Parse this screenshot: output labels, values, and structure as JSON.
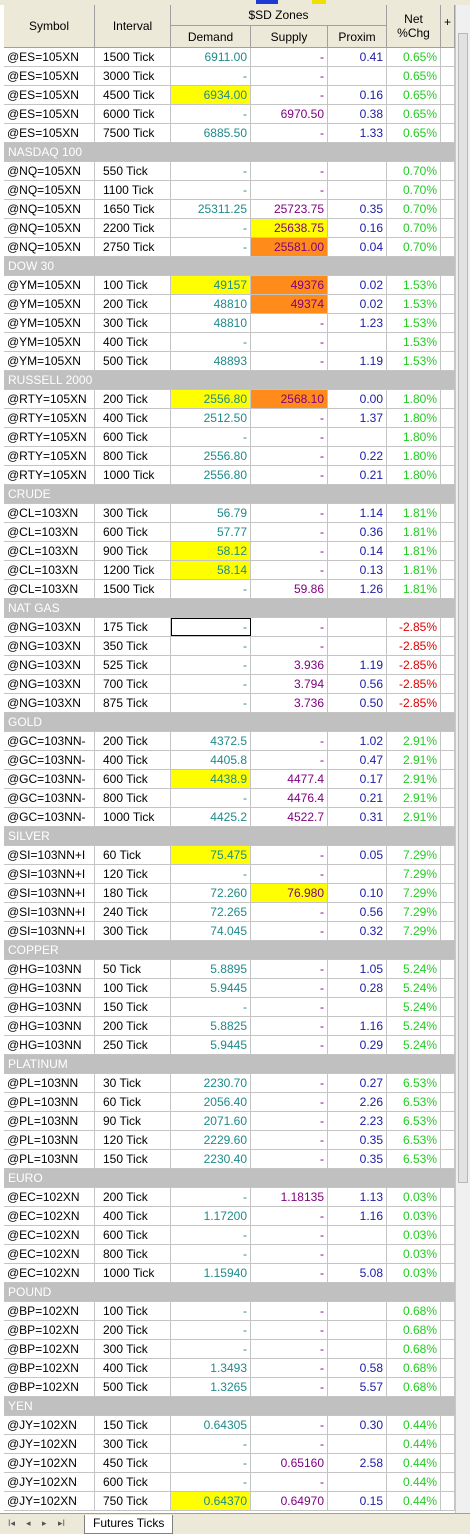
{
  "header": {
    "symbol": "Symbol",
    "interval": "Interval",
    "zones": "$SD Zones",
    "demand": "Demand",
    "supply": "Supply",
    "proxim": "Proxim",
    "net1": "Net",
    "net2": "%Chg",
    "plus": "+"
  },
  "tab": {
    "label": "Futures Ticks"
  },
  "nav": {
    "first": "I◂",
    "prev": "◂",
    "next": "▸",
    "last": "▸I"
  },
  "colors": {
    "demand": "#1e8a8a",
    "supply": "#800080",
    "proxim": "#1a1aa6",
    "net_positive": "#22cc22",
    "net_negative": "#e00000",
    "highlight_yellow": "#ffff00",
    "highlight_orange": "#ff8c1a",
    "group_bg": "#c0c0c0"
  },
  "rows": [
    {
      "type": "data",
      "symbol": "@ES=105XN",
      "interval": "1500 Tick",
      "demand": "6911.00",
      "supply": "-",
      "proxim": "0.41",
      "net": "0.65%"
    },
    {
      "type": "data",
      "symbol": "@ES=105XN",
      "interval": "3000 Tick",
      "demand": "-",
      "supply": "-",
      "proxim": "",
      "net": "0.65%"
    },
    {
      "type": "data",
      "symbol": "@ES=105XN",
      "interval": "4500 Tick",
      "demand": "6934.00",
      "supply": "-",
      "proxim": "0.16",
      "net": "0.65%",
      "demand_hl": "y"
    },
    {
      "type": "data",
      "symbol": "@ES=105XN",
      "interval": "6000 Tick",
      "demand": "-",
      "supply": "6970.50",
      "proxim": "0.38",
      "net": "0.65%"
    },
    {
      "type": "data",
      "symbol": "@ES=105XN",
      "interval": "7500 Tick",
      "demand": "6885.50",
      "supply": "-",
      "proxim": "1.33",
      "net": "0.65%"
    },
    {
      "type": "group",
      "label": "NASDAQ 100"
    },
    {
      "type": "data",
      "symbol": "@NQ=105XN",
      "interval": "550 Tick",
      "demand": "-",
      "supply": "-",
      "proxim": "",
      "net": "0.70%"
    },
    {
      "type": "data",
      "symbol": "@NQ=105XN",
      "interval": "1100 Tick",
      "demand": "-",
      "supply": "-",
      "proxim": "",
      "net": "0.70%"
    },
    {
      "type": "data",
      "symbol": "@NQ=105XN",
      "interval": "1650 Tick",
      "demand": "25311.25",
      "supply": "25723.75",
      "proxim": "0.35",
      "net": "0.70%"
    },
    {
      "type": "data",
      "symbol": "@NQ=105XN",
      "interval": "2200 Tick",
      "demand": "-",
      "supply": "25638.75",
      "proxim": "0.16",
      "net": "0.70%",
      "supply_hl": "y"
    },
    {
      "type": "data",
      "symbol": "@NQ=105XN",
      "interval": "2750 Tick",
      "demand": "-",
      "supply": "25581.00",
      "proxim": "0.04",
      "net": "0.70%",
      "supply_hl": "o"
    },
    {
      "type": "group",
      "label": "DOW 30"
    },
    {
      "type": "data",
      "symbol": "@YM=105XN",
      "interval": "100 Tick",
      "demand": "49157",
      "supply": "49376",
      "proxim": "0.02",
      "net": "1.53%",
      "demand_hl": "y",
      "supply_hl": "o"
    },
    {
      "type": "data",
      "symbol": "@YM=105XN",
      "interval": "200 Tick",
      "demand": "48810",
      "supply": "49374",
      "proxim": "0.02",
      "net": "1.53%",
      "supply_hl": "o"
    },
    {
      "type": "data",
      "symbol": "@YM=105XN",
      "interval": "300 Tick",
      "demand": "48810",
      "supply": "-",
      "proxim": "1.23",
      "net": "1.53%"
    },
    {
      "type": "data",
      "symbol": "@YM=105XN",
      "interval": "400 Tick",
      "demand": "-",
      "supply": "-",
      "proxim": "",
      "net": "1.53%"
    },
    {
      "type": "data",
      "symbol": "@YM=105XN",
      "interval": "500 Tick",
      "demand": "48893",
      "supply": "-",
      "proxim": "1.19",
      "net": "1.53%"
    },
    {
      "type": "group",
      "label": "RUSSELL 2000"
    },
    {
      "type": "data",
      "symbol": "@RTY=105XN",
      "interval": "200 Tick",
      "demand": "2556.80",
      "supply": "2568.10",
      "proxim": "0.00",
      "net": "1.80%",
      "demand_hl": "y",
      "supply_hl": "o"
    },
    {
      "type": "data",
      "symbol": "@RTY=105XN",
      "interval": "400 Tick",
      "demand": "2512.50",
      "supply": "-",
      "proxim": "1.37",
      "net": "1.80%"
    },
    {
      "type": "data",
      "symbol": "@RTY=105XN",
      "interval": "600 Tick",
      "demand": "-",
      "supply": "-",
      "proxim": "",
      "net": "1.80%"
    },
    {
      "type": "data",
      "symbol": "@RTY=105XN",
      "interval": "800 Tick",
      "demand": "2556.80",
      "supply": "-",
      "proxim": "0.22",
      "net": "1.80%"
    },
    {
      "type": "data",
      "symbol": "@RTY=105XN",
      "interval": "1000 Tick",
      "demand": "2556.80",
      "supply": "-",
      "proxim": "0.21",
      "net": "1.80%"
    },
    {
      "type": "group",
      "label": "CRUDE"
    },
    {
      "type": "data",
      "symbol": "@CL=103XN",
      "interval": "300 Tick",
      "demand": "56.79",
      "supply": "-",
      "proxim": "1.14",
      "net": "1.81%"
    },
    {
      "type": "data",
      "symbol": "@CL=103XN",
      "interval": "600 Tick",
      "demand": "57.77",
      "supply": "-",
      "proxim": "0.36",
      "net": "1.81%"
    },
    {
      "type": "data",
      "symbol": "@CL=103XN",
      "interval": "900 Tick",
      "demand": "58.12",
      "supply": "-",
      "proxim": "0.14",
      "net": "1.81%",
      "demand_hl": "y"
    },
    {
      "type": "data",
      "symbol": "@CL=103XN",
      "interval": "1200 Tick",
      "demand": "58.14",
      "supply": "-",
      "proxim": "0.13",
      "net": "1.81%",
      "demand_hl": "y"
    },
    {
      "type": "data",
      "symbol": "@CL=103XN",
      "interval": "1500 Tick",
      "demand": "-",
      "supply": "59.86",
      "proxim": "1.26",
      "net": "1.81%"
    },
    {
      "type": "group",
      "label": "NAT GAS"
    },
    {
      "type": "data",
      "symbol": "@NG=103XN",
      "interval": "175 Tick",
      "demand": "-",
      "supply": "-",
      "proxim": "",
      "net": "-2.85%",
      "demand_sel": true
    },
    {
      "type": "data",
      "symbol": "@NG=103XN",
      "interval": "350 Tick",
      "demand": "-",
      "supply": "-",
      "proxim": "",
      "net": "-2.85%"
    },
    {
      "type": "data",
      "symbol": "@NG=103XN",
      "interval": "525 Tick",
      "demand": "-",
      "supply": "3.936",
      "proxim": "1.19",
      "net": "-2.85%"
    },
    {
      "type": "data",
      "symbol": "@NG=103XN",
      "interval": "700 Tick",
      "demand": "-",
      "supply": "3.794",
      "proxim": "0.56",
      "net": "-2.85%"
    },
    {
      "type": "data",
      "symbol": "@NG=103XN",
      "interval": "875 Tick",
      "demand": "-",
      "supply": "3.736",
      "proxim": "0.50",
      "net": "-2.85%"
    },
    {
      "type": "group",
      "label": "GOLD"
    },
    {
      "type": "data",
      "symbol": "@GC=103NN-",
      "interval": "200 Tick",
      "demand": "4372.5",
      "supply": "-",
      "proxim": "1.02",
      "net": "2.91%"
    },
    {
      "type": "data",
      "symbol": "@GC=103NN-",
      "interval": "400 Tick",
      "demand": "4405.8",
      "supply": "-",
      "proxim": "0.47",
      "net": "2.91%"
    },
    {
      "type": "data",
      "symbol": "@GC=103NN-",
      "interval": "600 Tick",
      "demand": "4438.9",
      "supply": "4477.4",
      "proxim": "0.17",
      "net": "2.91%",
      "demand_hl": "y"
    },
    {
      "type": "data",
      "symbol": "@GC=103NN-",
      "interval": "800 Tick",
      "demand": "-",
      "supply": "4476.4",
      "proxim": "0.21",
      "net": "2.91%"
    },
    {
      "type": "data",
      "symbol": "@GC=103NN-",
      "interval": "1000 Tick",
      "demand": "4425.2",
      "supply": "4522.7",
      "proxim": "0.31",
      "net": "2.91%"
    },
    {
      "type": "group",
      "label": "SILVER"
    },
    {
      "type": "data",
      "symbol": "@SI=103NN+I",
      "interval": "60 Tick",
      "demand": "75.475",
      "supply": "-",
      "proxim": "0.05",
      "net": "7.29%",
      "demand_hl": "y"
    },
    {
      "type": "data",
      "symbol": "@SI=103NN+I",
      "interval": "120 Tick",
      "demand": "-",
      "supply": "-",
      "proxim": "",
      "net": "7.29%"
    },
    {
      "type": "data",
      "symbol": "@SI=103NN+I",
      "interval": "180 Tick",
      "demand": "72.260",
      "supply": "76.980",
      "proxim": "0.10",
      "net": "7.29%",
      "supply_hl": "y"
    },
    {
      "type": "data",
      "symbol": "@SI=103NN+I",
      "interval": "240 Tick",
      "demand": "72.265",
      "supply": "-",
      "proxim": "0.56",
      "net": "7.29%"
    },
    {
      "type": "data",
      "symbol": "@SI=103NN+I",
      "interval": "300 Tick",
      "demand": "74.045",
      "supply": "-",
      "proxim": "0.32",
      "net": "7.29%"
    },
    {
      "type": "group",
      "label": "COPPER"
    },
    {
      "type": "data",
      "symbol": "@HG=103NN",
      "interval": "50 Tick",
      "demand": "5.8895",
      "supply": "-",
      "proxim": "1.05",
      "net": "5.24%"
    },
    {
      "type": "data",
      "symbol": "@HG=103NN",
      "interval": "100 Tick",
      "demand": "5.9445",
      "supply": "-",
      "proxim": "0.28",
      "net": "5.24%"
    },
    {
      "type": "data",
      "symbol": "@HG=103NN",
      "interval": "150 Tick",
      "demand": "-",
      "supply": "-",
      "proxim": "",
      "net": "5.24%"
    },
    {
      "type": "data",
      "symbol": "@HG=103NN",
      "interval": "200 Tick",
      "demand": "5.8825",
      "supply": "-",
      "proxim": "1.16",
      "net": "5.24%"
    },
    {
      "type": "data",
      "symbol": "@HG=103NN",
      "interval": "250 Tick",
      "demand": "5.9445",
      "supply": "-",
      "proxim": "0.29",
      "net": "5.24%"
    },
    {
      "type": "group",
      "label": "PLATINUM"
    },
    {
      "type": "data",
      "symbol": "@PL=103NN",
      "interval": "30 Tick",
      "demand": "2230.70",
      "supply": "-",
      "proxim": "0.27",
      "net": "6.53%"
    },
    {
      "type": "data",
      "symbol": "@PL=103NN",
      "interval": "60 Tick",
      "demand": "2056.40",
      "supply": "-",
      "proxim": "2.26",
      "net": "6.53%"
    },
    {
      "type": "data",
      "symbol": "@PL=103NN",
      "interval": "90 Tick",
      "demand": "2071.60",
      "supply": "-",
      "proxim": "2.23",
      "net": "6.53%"
    },
    {
      "type": "data",
      "symbol": "@PL=103NN",
      "interval": "120 Tick",
      "demand": "2229.60",
      "supply": "-",
      "proxim": "0.35",
      "net": "6.53%"
    },
    {
      "type": "data",
      "symbol": "@PL=103NN",
      "interval": "150 Tick",
      "demand": "2230.40",
      "supply": "-",
      "proxim": "0.35",
      "net": "6.53%"
    },
    {
      "type": "group",
      "label": "EURO"
    },
    {
      "type": "data",
      "symbol": "@EC=102XN",
      "interval": "200 Tick",
      "demand": "-",
      "supply": "1.18135",
      "proxim": "1.13",
      "net": "0.03%"
    },
    {
      "type": "data",
      "symbol": "@EC=102XN",
      "interval": "400 Tick",
      "demand": "1.17200",
      "supply": "-",
      "proxim": "1.16",
      "net": "0.03%"
    },
    {
      "type": "data",
      "symbol": "@EC=102XN",
      "interval": "600 Tick",
      "demand": "-",
      "supply": "-",
      "proxim": "",
      "net": "0.03%"
    },
    {
      "type": "data",
      "symbol": "@EC=102XN",
      "interval": "800 Tick",
      "demand": "-",
      "supply": "-",
      "proxim": "",
      "net": "0.03%"
    },
    {
      "type": "data",
      "symbol": "@EC=102XN",
      "interval": "1000 Tick",
      "demand": "1.15940",
      "supply": "-",
      "proxim": "5.08",
      "net": "0.03%"
    },
    {
      "type": "group",
      "label": "POUND"
    },
    {
      "type": "data",
      "symbol": "@BP=102XN",
      "interval": "100 Tick",
      "demand": "-",
      "supply": "-",
      "proxim": "",
      "net": "0.68%"
    },
    {
      "type": "data",
      "symbol": "@BP=102XN",
      "interval": "200 Tick",
      "demand": "-",
      "supply": "-",
      "proxim": "",
      "net": "0.68%"
    },
    {
      "type": "data",
      "symbol": "@BP=102XN",
      "interval": "300 Tick",
      "demand": "-",
      "supply": "-",
      "proxim": "",
      "net": "0.68%"
    },
    {
      "type": "data",
      "symbol": "@BP=102XN",
      "interval": "400 Tick",
      "demand": "1.3493",
      "supply": "-",
      "proxim": "0.58",
      "net": "0.68%"
    },
    {
      "type": "data",
      "symbol": "@BP=102XN",
      "interval": "500 Tick",
      "demand": "1.3265",
      "supply": "-",
      "proxim": "5.57",
      "net": "0.68%"
    },
    {
      "type": "group",
      "label": "YEN"
    },
    {
      "type": "data",
      "symbol": "@JY=102XN",
      "interval": "150 Tick",
      "demand": "0.64305",
      "supply": "-",
      "proxim": "0.30",
      "net": "0.44%"
    },
    {
      "type": "data",
      "symbol": "@JY=102XN",
      "interval": "300 Tick",
      "demand": "-",
      "supply": "-",
      "proxim": "",
      "net": "0.44%"
    },
    {
      "type": "data",
      "symbol": "@JY=102XN",
      "interval": "450 Tick",
      "demand": "-",
      "supply": "0.65160",
      "proxim": "2.58",
      "net": "0.44%"
    },
    {
      "type": "data",
      "symbol": "@JY=102XN",
      "interval": "600 Tick",
      "demand": "-",
      "supply": "-",
      "proxim": "",
      "net": "0.44%"
    },
    {
      "type": "data",
      "symbol": "@JY=102XN",
      "interval": "750 Tick",
      "demand": "0.64370",
      "supply": "0.64970",
      "proxim": "0.15",
      "net": "0.44%",
      "demand_hl": "y"
    }
  ]
}
